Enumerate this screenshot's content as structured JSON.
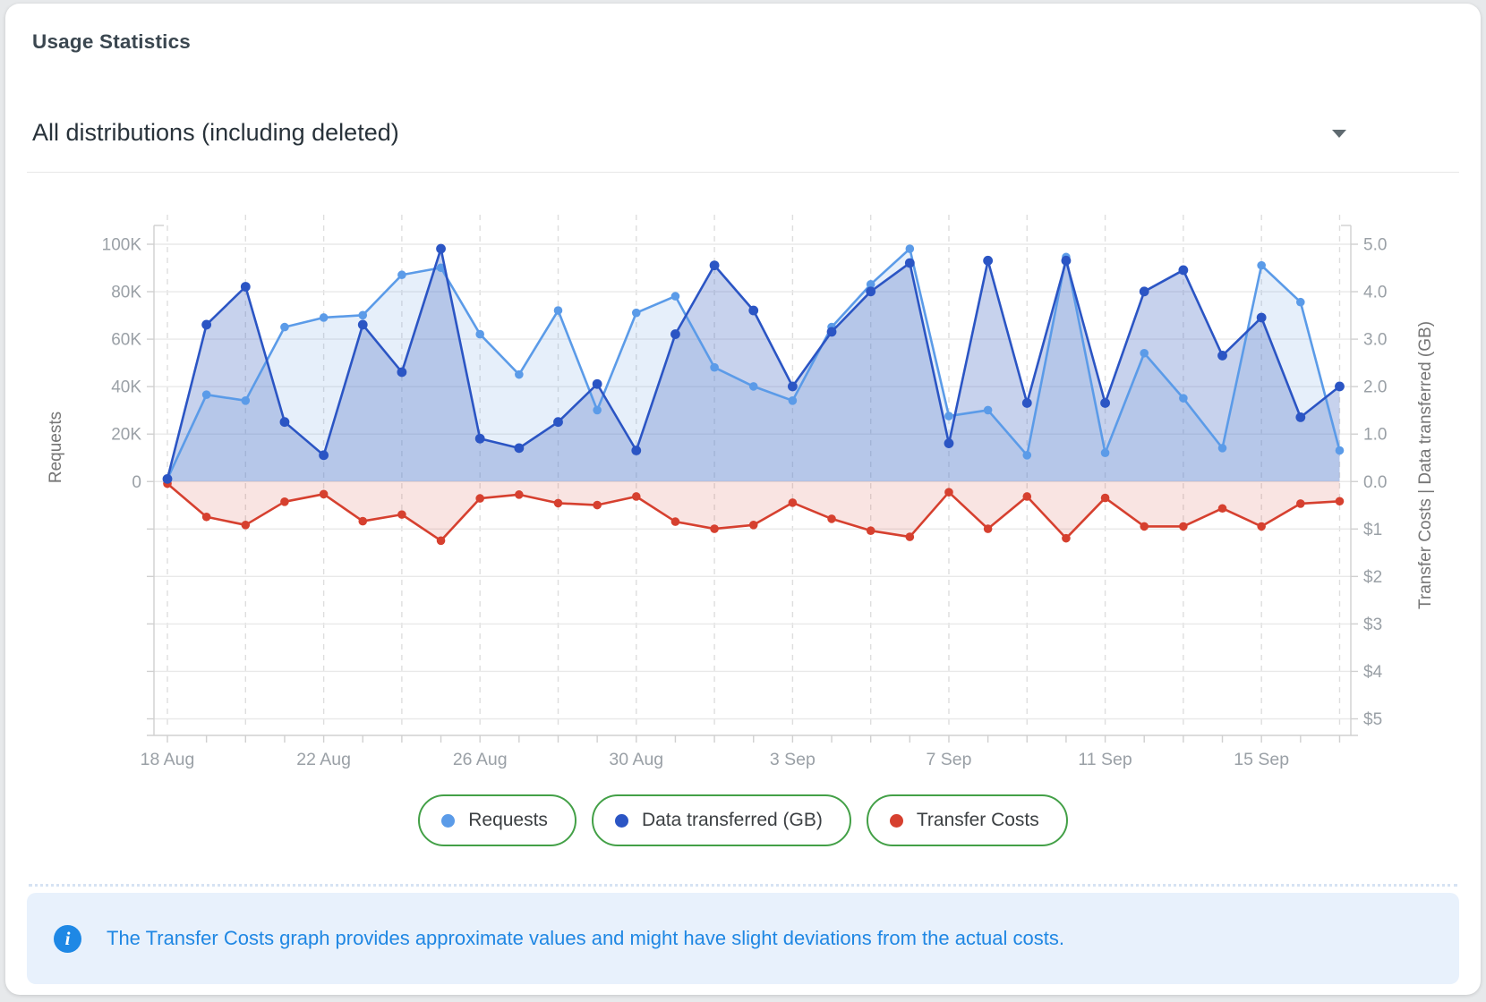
{
  "header": {
    "title": "Usage Statistics"
  },
  "filter": {
    "selected": "All distributions (including deleted)"
  },
  "chart_data": {
    "type": "line",
    "x": [
      "18 Aug",
      "19 Aug",
      "20 Aug",
      "21 Aug",
      "22 Aug",
      "23 Aug",
      "24 Aug",
      "25 Aug",
      "26 Aug",
      "27 Aug",
      "28 Aug",
      "29 Aug",
      "30 Aug",
      "31 Aug",
      "1 Sep",
      "2 Sep",
      "3 Sep",
      "4 Sep",
      "5 Sep",
      "6 Sep",
      "7 Sep",
      "8 Sep",
      "9 Sep",
      "10 Sep",
      "11 Sep",
      "12 Sep",
      "13 Sep",
      "14 Sep",
      "15 Sep",
      "16 Sep",
      "17 Sep"
    ],
    "x_tick_labels": [
      "18 Aug",
      "22 Aug",
      "26 Aug",
      "30 Aug",
      "3 Sep",
      "7 Sep",
      "11 Sep",
      "15 Sep"
    ],
    "x_tick_every": 4,
    "grid": "horizontal solid, vertical dashed every 2 days",
    "series": [
      {
        "name": "Requests",
        "axis": "left",
        "color": "#5B9BE8",
        "fill": "rgba(100,155,225,0.16)",
        "values": [
          1000,
          36500,
          34000,
          65000,
          69000,
          70000,
          87000,
          90000,
          62000,
          45000,
          72000,
          30000,
          71000,
          78000,
          48000,
          40000,
          34000,
          65000,
          83000,
          98000,
          27500,
          30000,
          11000,
          94500,
          12000,
          54000,
          35000,
          14000,
          91000,
          75500,
          13000
        ]
      },
      {
        "name": "Data transferred (GB)",
        "axis": "right",
        "color": "#2B55C4",
        "fill": "rgba(80,115,200,0.32)",
        "values": [
          0.05,
          3.3,
          4.1,
          1.25,
          0.55,
          3.3,
          2.3,
          4.9,
          0.9,
          0.7,
          1.25,
          2.05,
          0.65,
          3.1,
          4.55,
          3.6,
          2.0,
          3.15,
          4.0,
          4.6,
          0.8,
          4.65,
          1.65,
          4.65,
          1.65,
          4.0,
          4.45,
          2.65,
          3.45,
          1.35,
          2.0
        ]
      },
      {
        "name": "Transfer Costs",
        "axis": "right-negative",
        "color": "#D6402F",
        "fill": "rgba(215,75,60,0.15)",
        "values": [
          0.05,
          0.75,
          0.92,
          0.43,
          0.27,
          0.84,
          0.7,
          1.25,
          0.36,
          0.28,
          0.46,
          0.5,
          0.32,
          0.85,
          1.0,
          0.92,
          0.45,
          0.79,
          1.04,
          1.17,
          0.23,
          1.0,
          0.32,
          1.2,
          0.35,
          0.95,
          0.95,
          0.57,
          0.95,
          0.47,
          0.42
        ]
      }
    ],
    "left_axis": {
      "label": "Requests",
      "tick_labels": [
        "100K",
        "80K",
        "60K",
        "40K",
        "20K",
        "0"
      ],
      "range": [
        0,
        100000
      ]
    },
    "right_axis": {
      "label": "Transfer Costs | Data transferred (GB)",
      "tick_labels_positive": [
        "5.0",
        "4.0",
        "3.0",
        "2.0",
        "1.0",
        "0.0"
      ],
      "tick_labels_negative": [
        "$1",
        "$2",
        "$3",
        "$4",
        "$5"
      ],
      "range_gb": [
        0,
        5
      ],
      "range_cost": [
        0,
        5
      ]
    },
    "colors": {
      "grid": "#e9e9e9",
      "grid_dashed": "#dedede",
      "axis_line": "#d0d0d0",
      "tick_text": "#9aa0a6",
      "axis_title": "#757575"
    }
  },
  "legend": [
    {
      "label": "Requests",
      "color": "#5B9BE8"
    },
    {
      "label": "Data transferred (GB)",
      "color": "#2B55C4"
    },
    {
      "label": "Transfer Costs",
      "color": "#D6402F"
    }
  ],
  "info_banner": {
    "icon": "info-icon",
    "text": "The Transfer Costs graph provides approximate values and might have slight deviations from the actual costs.",
    "background": "#e8f1fc",
    "text_color": "#1f87e3"
  }
}
